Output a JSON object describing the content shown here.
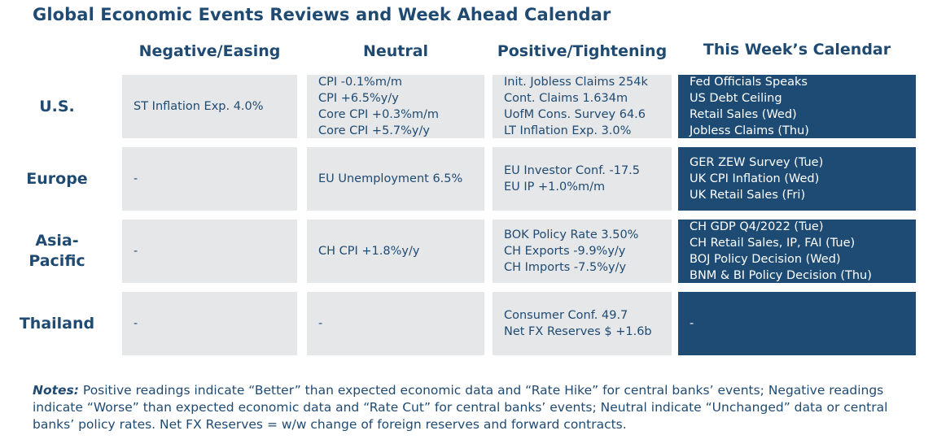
{
  "title": "Global Economic Events Reviews and Week Ahead Calendar",
  "headers": {
    "negative": "Negative/Easing",
    "neutral": "Neutral",
    "positive": "Positive/Tightening",
    "calendar": "This Week’s Calendar"
  },
  "rows": [
    {
      "region": [
        "U.S."
      ],
      "negative": [
        "ST Inflation Exp. 4.0%"
      ],
      "neutral": [
        "CPI -0.1%m/m",
        "CPI +6.5%y/y",
        "Core CPI +0.3%m/m",
        "Core CPI +5.7%y/y"
      ],
      "positive": [
        "Init. Jobless Claims 254k",
        "Cont. Claims 1.634m",
        "UofM Cons. Survey 64.6",
        "LT Inflation Exp. 3.0%"
      ],
      "calendar": [
        "Fed Officials Speaks",
        "US Debt Ceiling",
        "Retail Sales (Wed)",
        "Jobless Claims (Thu)"
      ]
    },
    {
      "region": [
        "Europe"
      ],
      "negative": [
        "-"
      ],
      "neutral": [
        "EU Unemployment 6.5%"
      ],
      "positive": [
        "EU Investor Conf. -17.5",
        "EU IP +1.0%m/m"
      ],
      "calendar": [
        "GER ZEW Survey (Tue)",
        "UK CPI Inflation (Wed)",
        "UK Retail Sales (Fri)"
      ]
    },
    {
      "region": [
        "Asia-",
        "Pacific"
      ],
      "negative": [
        "-"
      ],
      "neutral": [
        "CH CPI +1.8%y/y"
      ],
      "positive": [
        "BOK Policy Rate 3.50%",
        "CH Exports -9.9%y/y",
        "CH Imports -7.5%y/y"
      ],
      "calendar": [
        "CH GDP Q4/2022 (Tue)",
        "CH Retail Sales, IP, FAI (Tue)",
        "BOJ Policy Decision (Wed)",
        "BNM & BI Policy Decision (Thu)"
      ]
    },
    {
      "region": [
        "Thailand"
      ],
      "negative": [
        "-"
      ],
      "neutral": [
        "-"
      ],
      "positive": [
        "Consumer Conf. 49.7",
        "Net FX Reserves $ +1.6b"
      ],
      "calendar": [
        "-"
      ]
    }
  ],
  "notes": {
    "lead": "Notes:",
    "text": " Positive readings indicate “Better” than expected economic data and “Rate Hike” for central banks’ events; Negative readings indicate “Worse” than expected economic data and “Rate Cut” for central banks’ events; Neutral indicate “Unchanged” data or central banks’ policy rates. Net FX Reserves = w/w change of foreign reserves and forward contracts."
  },
  "colors": {
    "title_text": "#1f4a72",
    "cell_bg": "#e6e7e8",
    "calendar_bg": "#1d4b73",
    "calendar_text": "#ffffff"
  }
}
